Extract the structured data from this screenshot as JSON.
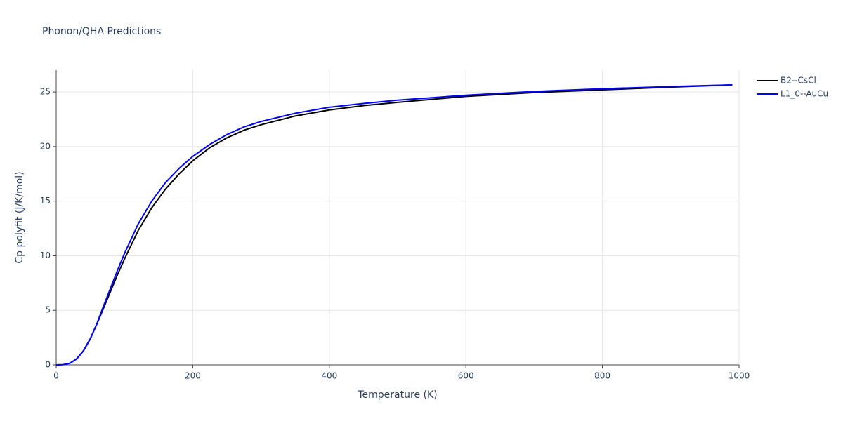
{
  "chart_data": {
    "type": "line",
    "title": "Phonon/QHA Predictions",
    "x_label": "Temperature (K)",
    "y_label": "Cp polyfit (J/K/mol)",
    "x": [
      0,
      10,
      20,
      30,
      40,
      50,
      60,
      70,
      80,
      90,
      100,
      120,
      140,
      160,
      180,
      200,
      225,
      250,
      275,
      300,
      350,
      400,
      450,
      500,
      600,
      700,
      800,
      900,
      990
    ],
    "series": [
      {
        "name": "B2--CsCl",
        "color": "#000000",
        "values": [
          0,
          0.02,
          0.15,
          0.55,
          1.3,
          2.4,
          3.8,
          5.3,
          6.8,
          8.3,
          9.7,
          12.3,
          14.4,
          16.1,
          17.5,
          18.7,
          19.9,
          20.8,
          21.5,
          22.0,
          22.8,
          23.35,
          23.75,
          24.05,
          24.6,
          24.95,
          25.2,
          25.45,
          25.65
        ]
      },
      {
        "name": "L1_0--AuCu",
        "color": "#0000ff",
        "values": [
          0,
          0.02,
          0.15,
          0.55,
          1.3,
          2.4,
          3.85,
          5.5,
          7.1,
          8.7,
          10.2,
          12.9,
          15.0,
          16.7,
          18.0,
          19.1,
          20.2,
          21.1,
          21.8,
          22.3,
          23.05,
          23.6,
          23.95,
          24.25,
          24.7,
          25.05,
          25.3,
          25.5,
          25.65
        ]
      }
    ],
    "xlim": [
      0,
      1000
    ],
    "xticks": [
      0,
      200,
      400,
      600,
      800,
      1000
    ],
    "ylim": [
      0,
      27
    ],
    "yticks": [
      0,
      5,
      10,
      15,
      20,
      25
    ],
    "grid": true,
    "legend": "top-right"
  }
}
